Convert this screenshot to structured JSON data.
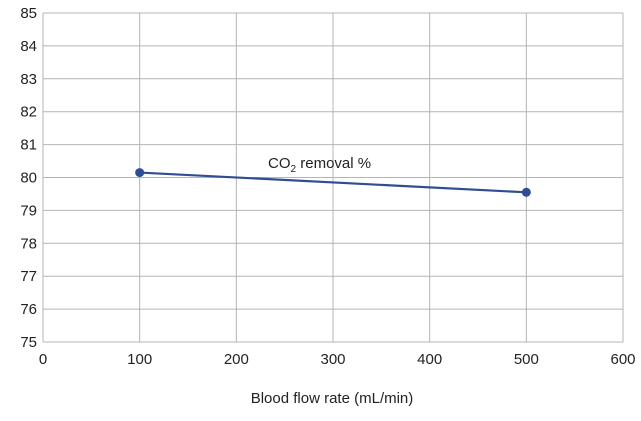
{
  "chart_data": {
    "type": "line",
    "title": "",
    "xlabel": "Blood flow rate (mL/min)",
    "ylabel": "",
    "xlim": [
      0,
      600
    ],
    "ylim": [
      75,
      85
    ],
    "xticks": [
      0,
      100,
      200,
      300,
      400,
      500,
      600
    ],
    "yticks": [
      75,
      76,
      77,
      78,
      79,
      80,
      81,
      82,
      83,
      84,
      85
    ],
    "grid": true,
    "legend": "none",
    "series": [
      {
        "name": "CO₂ removal %",
        "name_parts": {
          "main": "CO",
          "sub": "2",
          "rest": " removal %"
        },
        "color": "#2e4d94",
        "x": [
          100,
          500
        ],
        "y": [
          80.15,
          79.55
        ]
      }
    ]
  }
}
